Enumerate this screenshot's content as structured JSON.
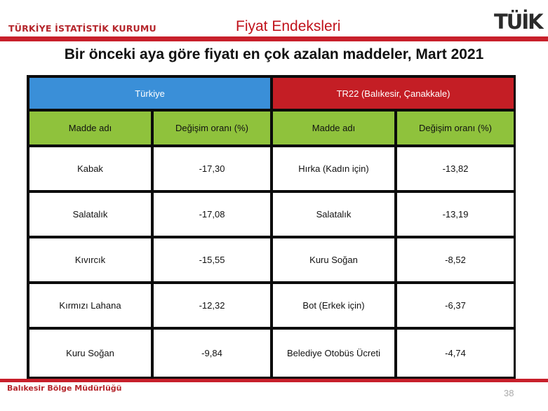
{
  "header": {
    "organization": "TÜRKİYE İSTATİSTİK KURUMU",
    "title": "Fiyat Endeksleri",
    "logo_text": "TÜİK"
  },
  "slide": {
    "title": "Bir önceki aya göre fiyatı en çok azalan maddeler, Mart 2021"
  },
  "table": {
    "groups": [
      "Türkiye",
      "TR22 (Balıkesir, Çanakkale)"
    ],
    "columns": [
      "Madde adı",
      "Değişim oranı (%)",
      "Madde adı",
      "Değişim oranı (%)"
    ],
    "rows": [
      [
        "Kabak",
        "-17,30",
        "Hırka (Kadın için)",
        "-13,82"
      ],
      [
        "Salatalık",
        "-17,08",
        "Salatalık",
        "-13,19"
      ],
      [
        "Kıvırcık",
        "-15,55",
        "Kuru Soğan",
        "-8,52"
      ],
      [
        "Kırmızı Lahana",
        "-12,32",
        "Bot (Erkek için)",
        "-6,37"
      ],
      [
        "Kuru Soğan",
        "-9,84",
        "Belediye Otobüs Ücreti",
        "-4,74"
      ]
    ]
  },
  "footer": {
    "office": "Balıkesir Bölge Müdürlüğü",
    "page_number": "38"
  },
  "colors": {
    "brand_red": "#c8202b",
    "group_turkiye": "#3a8fd8",
    "group_region": "#c41e25",
    "subheader_green": "#8fc23c"
  }
}
